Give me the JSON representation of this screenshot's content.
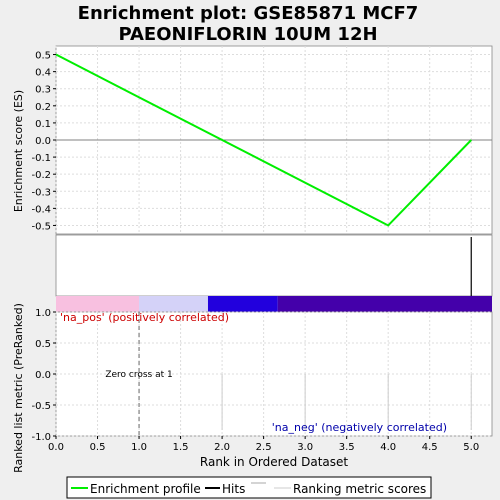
{
  "chart_data": [
    {
      "type": "line",
      "title": "Enrichment plot: GSE85871 MCF7\nPAEONIFLORIN 10UM 12H",
      "title_lines": [
        "Enrichment plot: GSE85871 MCF7",
        "PAEONIFLORIN 10UM 12H"
      ],
      "ylabel": "Enrichment score (ES)",
      "xlim": [
        0,
        5.25
      ],
      "ylim": [
        -0.55,
        0.55
      ],
      "y_ticks": [
        0.5,
        0.4,
        0.3,
        0.2,
        0.1,
        0.0,
        -0.1,
        -0.2,
        -0.3,
        -0.4,
        -0.5
      ],
      "y_tick_labels": [
        "0.5",
        "0.4",
        "0.3",
        "0.2",
        "0.1",
        "0.0",
        "-0.1",
        "-0.2",
        "-0.3",
        "-0.4",
        "-0.5"
      ],
      "grid": true,
      "series": [
        {
          "name": "Enrichment profile",
          "color": "#00ee00",
          "x": [
            0,
            4,
            5
          ],
          "y": [
            0.5,
            -0.5,
            0.0
          ]
        }
      ]
    },
    {
      "type": "hits",
      "hits_x": [
        5
      ],
      "color": "#000000"
    },
    {
      "type": "bar",
      "xlabel": "Rank in Ordered Dataset",
      "ylabel": "Ranked list metric (PreRanked)",
      "xlim": [
        0,
        5.25
      ],
      "ylim": [
        -1.0,
        1.0
      ],
      "x_ticks": [
        0.0,
        0.5,
        1.0,
        1.5,
        2.0,
        2.5,
        3.0,
        3.5,
        4.0,
        4.5,
        5.0
      ],
      "x_tick_labels": [
        "0.0",
        "0.5",
        "1.0",
        "1.5",
        "2.0",
        "2.5",
        "3.0",
        "3.5",
        "4.0",
        "4.5",
        "5.0"
      ],
      "y_ticks": [
        1.0,
        0.5,
        0.0,
        -0.5,
        -1.0
      ],
      "y_tick_labels": [
        "1.0",
        "0.5",
        "0.0",
        "-0.5",
        "-1.0"
      ],
      "grid": true,
      "metric_bars_x": [
        2,
        3,
        4,
        5
      ],
      "zero_cross_x": 1,
      "zero_cross_label": "Zero cross at 1",
      "pos_label": "'na_pos' (positively correlated)",
      "neg_label": "'na_neg' (negatively correlated)",
      "pos_label_color": "#cc0000",
      "neg_label_color": "#0000aa",
      "heat_segments": [
        {
          "from": 0.0,
          "to": 1.0,
          "color": "#f8c0e0"
        },
        {
          "from": 1.0,
          "to": 1.83,
          "color": "#d4d2f8"
        },
        {
          "from": 1.83,
          "to": 2.67,
          "color": "#2200dd"
        },
        {
          "from": 2.67,
          "to": 5.25,
          "color": "#4400aa"
        }
      ]
    }
  ],
  "legend": {
    "items": [
      {
        "label": "Enrichment profile",
        "color": "#00ee00",
        "kind": "line"
      },
      {
        "label": "Hits",
        "color": "#000000",
        "kind": "line"
      },
      {
        "label": "Ranking metric scores",
        "color": "#cccccc",
        "kind": "line"
      }
    ]
  }
}
